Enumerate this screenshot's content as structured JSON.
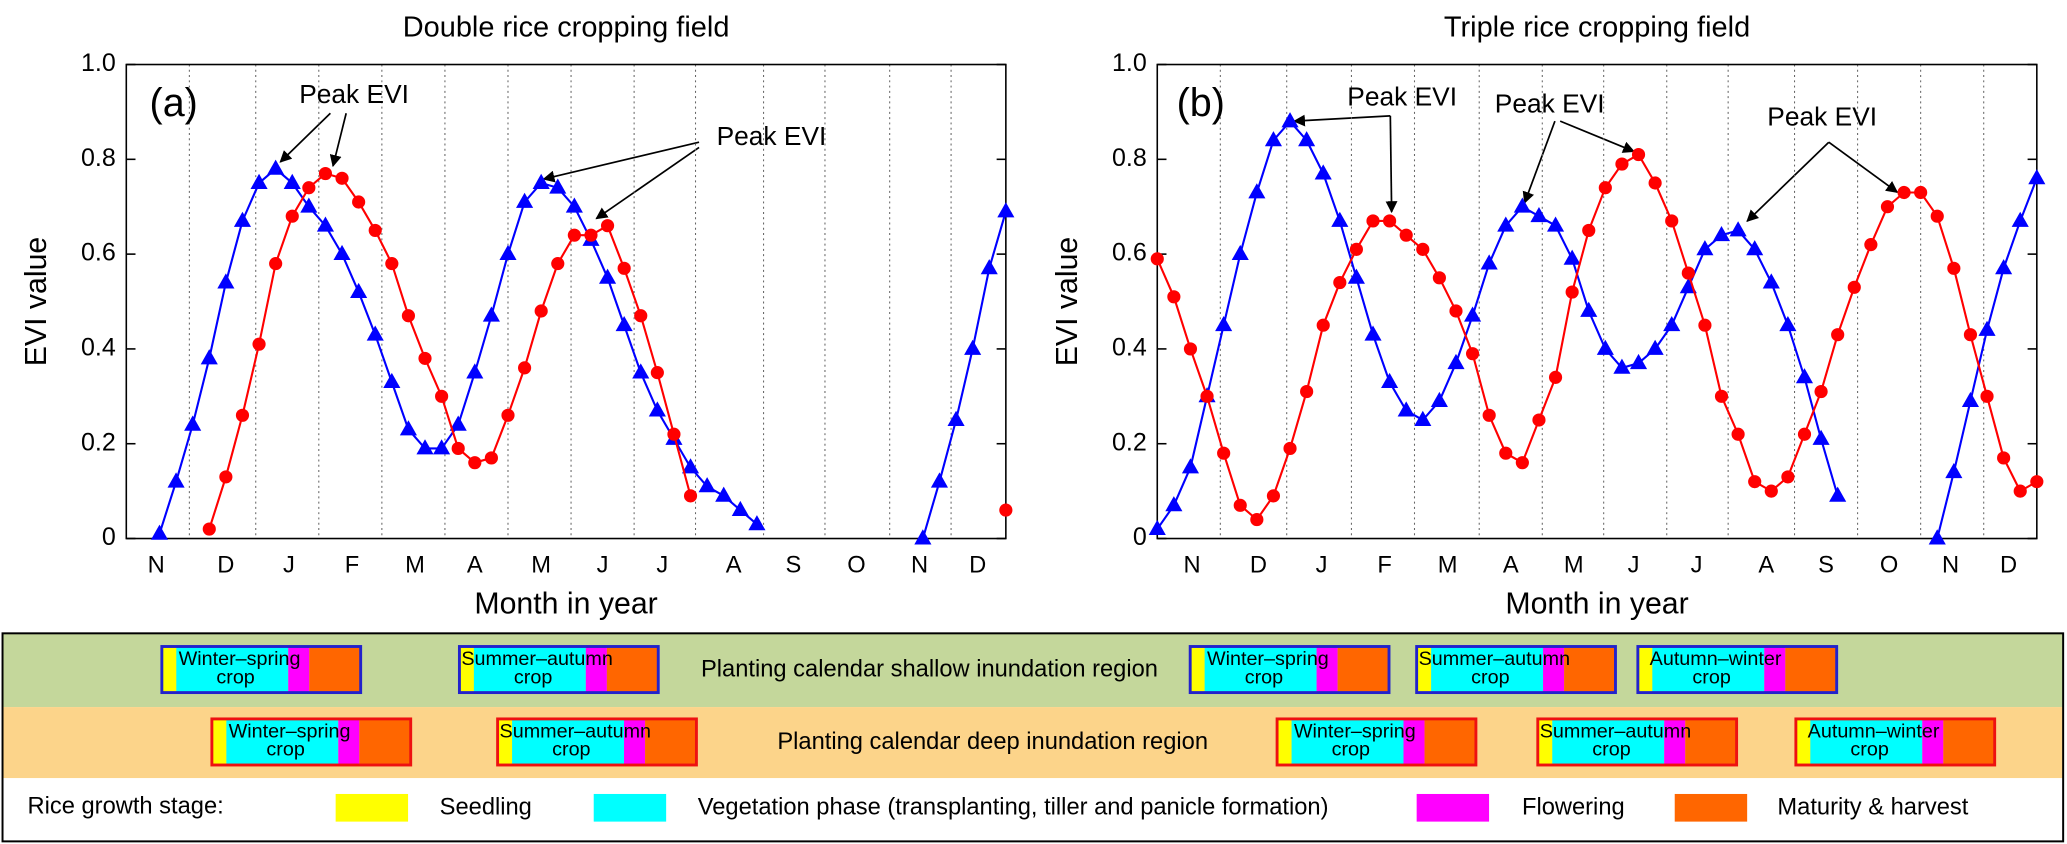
{
  "chart_data": [
    {
      "type": "line",
      "title": "Double rice cropping field",
      "xlabel": "Month in year",
      "ylabel": "EVI value",
      "annotations": [
        "(a)",
        "Peak EVI",
        "Peak EVI"
      ],
      "x": [
        0,
        1,
        2,
        3,
        4,
        5,
        6,
        7,
        8,
        9,
        10,
        11,
        12,
        13,
        14,
        15,
        16,
        17,
        18,
        19,
        20,
        21,
        22,
        23,
        24,
        25,
        26,
        27,
        28,
        29,
        30,
        31,
        32,
        33,
        34,
        35,
        36,
        37,
        38,
        39,
        40,
        41,
        42,
        43,
        44,
        45,
        46,
        47,
        48,
        49,
        50,
        51,
        52,
        53
      ],
      "xlim": [
        0,
        53
      ],
      "ylim": [
        0,
        1
      ],
      "yticks": [
        0,
        0.2,
        0.4,
        0.6,
        0.8,
        {
          "value": 1,
          "label": "1.0"
        }
      ],
      "xticks": [
        {
          "value": 1.8,
          "label": "N"
        },
        {
          "value": 6.0,
          "label": "D"
        },
        {
          "value": 9.8,
          "label": "J"
        },
        {
          "value": 13.6,
          "label": "F"
        },
        {
          "value": 17.4,
          "label": "M"
        },
        {
          "value": 21.0,
          "label": "A"
        },
        {
          "value": 25.0,
          "label": "M"
        },
        {
          "value": 28.7,
          "label": "J"
        },
        {
          "value": 32.3,
          "label": "J"
        },
        {
          "value": 36.6,
          "label": "A"
        },
        {
          "value": 40.2,
          "label": "S"
        },
        {
          "value": 44.0,
          "label": "O"
        },
        {
          "value": 47.8,
          "label": "N"
        },
        {
          "value": 51.3,
          "label": "D"
        }
      ],
      "xgrid": [
        3.8,
        7.8,
        11.6,
        15.4,
        19.2,
        23.0,
        26.8,
        30.6,
        34.3,
        38.4,
        42.1,
        46.0,
        49.7
      ],
      "series": [
        {
          "color": "#0000ff",
          "marker": "triangle",
          "values": [
            null,
            null,
            0.01,
            0.12,
            0.24,
            0.38,
            0.54,
            0.67,
            0.75,
            0.78,
            0.75,
            0.7,
            0.66,
            0.6,
            0.52,
            0.43,
            0.33,
            0.23,
            0.19,
            0.19,
            0.24,
            0.35,
            0.47,
            0.6,
            0.71,
            0.75,
            0.74,
            0.7,
            0.63,
            0.55,
            0.45,
            0.35,
            0.27,
            0.21,
            0.15,
            0.11,
            0.09,
            0.06,
            0.03,
            null,
            null,
            null,
            null,
            null,
            null,
            null,
            null,
            null,
            0.0,
            0.12,
            0.25,
            0.4,
            0.57,
            0.69
          ]
        },
        {
          "color": "#ff0000",
          "marker": "circle",
          "values": [
            null,
            null,
            null,
            null,
            null,
            0.02,
            0.13,
            0.26,
            0.41,
            0.58,
            0.68,
            0.74,
            0.77,
            0.76,
            0.71,
            0.65,
            0.58,
            0.47,
            0.38,
            0.3,
            0.19,
            0.16,
            0.17,
            0.26,
            0.36,
            0.48,
            0.58,
            0.64,
            0.64,
            0.66,
            0.57,
            0.47,
            0.35,
            0.22,
            0.09,
            null,
            null,
            null,
            null,
            null,
            null,
            null,
            null,
            null,
            null,
            null,
            null,
            null,
            null,
            null,
            null,
            null,
            null,
            0.06
          ]
        }
      ]
    },
    {
      "type": "line",
      "title": "Triple rice cropping field",
      "xlabel": "Month in year",
      "ylabel": "EVI value",
      "annotations": [
        "(b)",
        "Peak EVI",
        "Peak EVI",
        "Peak EVI"
      ],
      "x": [
        0,
        1,
        2,
        3,
        4,
        5,
        6,
        7,
        8,
        9,
        10,
        11,
        12,
        13,
        14,
        15,
        16,
        17,
        18,
        19,
        20,
        21,
        22,
        23,
        24,
        25,
        26,
        27,
        28,
        29,
        30,
        31,
        32,
        33,
        34,
        35,
        36,
        37,
        38,
        39,
        40,
        41,
        42,
        43,
        44,
        45,
        46,
        47,
        48,
        49,
        50,
        51,
        52,
        53
      ],
      "xlim": [
        0,
        53
      ],
      "ylim": [
        0,
        1
      ],
      "yticks": [
        0,
        0.2,
        0.4,
        0.6,
        0.8,
        {
          "value": 1,
          "label": "1.0"
        }
      ],
      "xticks": [
        {
          "value": 2.1,
          "label": "N"
        },
        {
          "value": 6.1,
          "label": "D"
        },
        {
          "value": 9.9,
          "label": "J"
        },
        {
          "value": 13.7,
          "label": "F"
        },
        {
          "value": 17.5,
          "label": "M"
        },
        {
          "value": 21.3,
          "label": "A"
        },
        {
          "value": 25.1,
          "label": "M"
        },
        {
          "value": 28.7,
          "label": "J"
        },
        {
          "value": 32.5,
          "label": "J"
        },
        {
          "value": 36.7,
          "label": "A"
        },
        {
          "value": 40.3,
          "label": "S"
        },
        {
          "value": 44.1,
          "label": "O"
        },
        {
          "value": 47.8,
          "label": "N"
        },
        {
          "value": 51.3,
          "label": "D"
        }
      ],
      "xgrid": [
        3.8,
        7.8,
        11.7,
        15.5,
        19.4,
        23.2,
        26.9,
        30.7,
        34.4,
        38.4,
        42.2,
        46.0,
        49.8
      ],
      "series": [
        {
          "color": "#0000ff",
          "marker": "triangle",
          "values": [
            0.02,
            0.07,
            0.15,
            0.3,
            0.45,
            0.6,
            0.73,
            0.84,
            0.88,
            0.84,
            0.77,
            0.67,
            0.55,
            0.43,
            0.33,
            0.27,
            0.25,
            0.29,
            0.37,
            0.47,
            0.58,
            0.66,
            0.7,
            0.68,
            0.66,
            0.59,
            0.48,
            0.4,
            0.36,
            0.37,
            0.4,
            0.45,
            0.53,
            0.61,
            0.64,
            0.65,
            0.61,
            0.54,
            0.45,
            0.34,
            0.21,
            0.09,
            null,
            null,
            null,
            null,
            null,
            0.0,
            0.14,
            0.29,
            0.44,
            0.57,
            0.67,
            0.76
          ]
        },
        {
          "color": "#ff0000",
          "marker": "circle",
          "values": [
            0.59,
            0.51,
            0.4,
            0.3,
            0.18,
            0.07,
            0.04,
            0.09,
            0.19,
            0.31,
            0.45,
            0.54,
            0.61,
            0.67,
            0.67,
            0.64,
            0.61,
            0.55,
            0.48,
            0.39,
            0.26,
            0.18,
            0.16,
            0.25,
            0.34,
            0.52,
            0.65,
            0.74,
            0.79,
            0.81,
            0.75,
            0.67,
            0.56,
            0.45,
            0.3,
            0.22,
            0.12,
            0.1,
            0.13,
            0.22,
            0.31,
            0.43,
            0.53,
            0.62,
            0.7,
            0.73,
            0.73,
            0.68,
            0.57,
            0.43,
            0.3,
            0.17,
            0.1,
            0.12
          ]
        }
      ]
    }
  ],
  "calendar": {
    "shallow": {
      "label": "Planting calendar shallow inundation region",
      "crops": [
        [
          "Winter–spring",
          "crop"
        ],
        [
          "Summer–autumn",
          "crop"
        ],
        [
          "Winter–spring",
          "crop"
        ],
        [
          "Summer–autumn",
          "crop"
        ],
        [
          "Autumn–winter",
          "crop"
        ]
      ]
    },
    "deep": {
      "label": "Planting calendar deep inundation region",
      "crops": [
        [
          "Winter–spring",
          "crop"
        ],
        [
          "Summer–autumn",
          "crop"
        ],
        [
          "Winter–spring",
          "crop"
        ],
        [
          "Summer–autumn",
          "crop"
        ],
        [
          "Autumn–winter",
          "crop"
        ]
      ]
    },
    "stages": {
      "title": "Rice growth stage:",
      "items": [
        {
          "name": "Seedling",
          "color": "#ffff00"
        },
        {
          "name": "Vegetation phase (transplanting, tiller and panicle formation)",
          "color": "#00ffff"
        },
        {
          "name": "Flowering",
          "color": "#ff00ff"
        },
        {
          "name": "Maturity & harvest",
          "color": "#ff6600"
        }
      ]
    }
  }
}
